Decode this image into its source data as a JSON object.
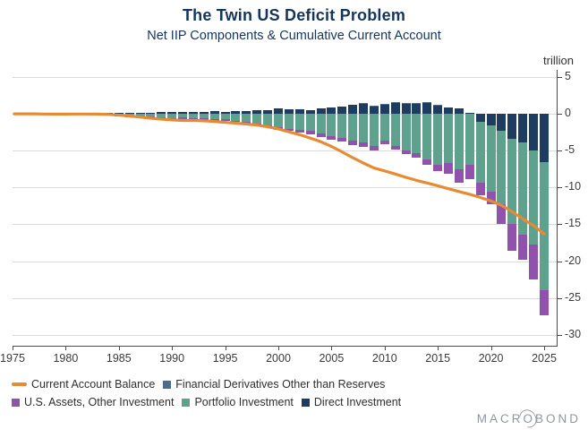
{
  "title": "The Twin US Deficit Problem",
  "subtitle": "Net IIP Components & Cumulative Current Account",
  "unit_label": "trillion",
  "watermark": {
    "part1": "MACR",
    "o": "O",
    "part2": "BOND"
  },
  "colors": {
    "direct_investment": "#1d3c5f",
    "portfolio_investment": "#5ea28d",
    "us_assets_other_investment": "#9152ad",
    "financial_derivatives": "#4d6a93",
    "current_account_line": "#e68b33",
    "title_text": "#14355c",
    "axis_text": "#3a3a3a",
    "gridline": "#dbdbdb",
    "logo_gray": "#8f979e"
  },
  "legend": {
    "rows": [
      [
        {
          "label": "Current Account Balance",
          "marker": "line",
          "color": "#e68b33"
        },
        {
          "label": "Financial Derivatives Other than Reserves",
          "marker": "square",
          "color": "#4d6a93"
        }
      ],
      [
        {
          "label": "U.S. Assets, Other Investment",
          "marker": "square",
          "color": "#9152ad"
        },
        {
          "label": "Portfolio Investment",
          "marker": "square",
          "color": "#5ea28d"
        },
        {
          "label": "Direct Investment",
          "marker": "square",
          "color": "#1d3c5f"
        }
      ]
    ]
  },
  "chart_data": {
    "type": "bar",
    "subtype": "stacked-bars-with-line",
    "unit": "trillion USD",
    "x": [
      1975,
      1976,
      1977,
      1978,
      1979,
      1980,
      1981,
      1982,
      1983,
      1984,
      1985,
      1986,
      1987,
      1988,
      1989,
      1990,
      1991,
      1992,
      1993,
      1994,
      1995,
      1996,
      1997,
      1998,
      1999,
      2000,
      2001,
      2002,
      2003,
      2004,
      2005,
      2006,
      2007,
      2008,
      2009,
      2010,
      2011,
      2012,
      2013,
      2014,
      2015,
      2016,
      2017,
      2018,
      2019,
      2020,
      2021,
      2022,
      2023,
      2024
    ],
    "x_ticks": [
      1975,
      1980,
      1985,
      1990,
      1995,
      2000,
      2005,
      2010,
      2015,
      2020,
      2025
    ],
    "y_ticks": [
      5,
      0,
      -5,
      -10,
      -15,
      -20,
      -25,
      -30
    ],
    "ylim": [
      -31.5,
      6
    ],
    "grid": true,
    "legend_position": "bottom-left",
    "series": [
      {
        "name": "Direct Investment",
        "type": "bar",
        "color": "#1d3c5f",
        "values": [
          0.08,
          0.09,
          0.1,
          0.12,
          0.15,
          0.17,
          0.18,
          0.18,
          0.18,
          0.17,
          0.17,
          0.19,
          0.21,
          0.23,
          0.24,
          0.25,
          0.28,
          0.3,
          0.34,
          0.28,
          0.38,
          0.42,
          0.48,
          0.55,
          0.75,
          0.7,
          0.68,
          0.56,
          0.73,
          0.9,
          1.0,
          1.2,
          1.4,
          1.0,
          1.3,
          1.5,
          1.4,
          1.45,
          1.55,
          1.2,
          0.9,
          0.8,
          0.2,
          -1.1,
          -1.5,
          -2.3,
          -3.4,
          -3.9,
          -5.0,
          -6.5
        ]
      },
      {
        "name": "Portfolio Investment",
        "type": "bar",
        "color": "#5ea28d",
        "values": [
          -0.03,
          -0.04,
          -0.05,
          -0.06,
          -0.07,
          -0.08,
          -0.09,
          -0.12,
          -0.16,
          -0.22,
          -0.28,
          -0.33,
          -0.36,
          -0.45,
          -0.55,
          -0.5,
          -0.55,
          -0.62,
          -0.72,
          -0.75,
          -0.92,
          -1.1,
          -1.3,
          -1.6,
          -1.85,
          -2.0,
          -2.2,
          -2.3,
          -2.7,
          -3.0,
          -3.2,
          -3.6,
          -3.9,
          -4.4,
          -3.6,
          -4.3,
          -4.9,
          -5.3,
          -6.2,
          -6.9,
          -6.7,
          -7.5,
          -6.9,
          -8.2,
          -9.0,
          -10.0,
          -11.6,
          -12.5,
          -12.8,
          -17.4
        ]
      },
      {
        "name": "U.S. Assets, Other Investment",
        "type": "bar",
        "color": "#9152ad",
        "values": [
          0,
          0,
          0,
          0,
          0,
          0,
          0,
          -0.02,
          -0.04,
          -0.06,
          -0.08,
          -0.1,
          -0.12,
          -0.14,
          -0.15,
          -0.16,
          -0.16,
          -0.17,
          -0.17,
          -0.18,
          -0.18,
          -0.19,
          -0.21,
          -0.24,
          -0.27,
          -0.3,
          -0.35,
          -0.45,
          -0.4,
          -0.5,
          -0.55,
          -0.6,
          -0.55,
          -0.6,
          -0.45,
          -0.5,
          -0.6,
          -0.65,
          -0.7,
          -0.8,
          -1.4,
          -1.9,
          -1.9,
          -1.8,
          -1.8,
          -2.6,
          -3.6,
          -3.4,
          -4.7,
          -3.4
        ]
      },
      {
        "name": "Financial Derivatives Other than Reserves",
        "type": "bar",
        "color": "#4d6a93",
        "values": [
          0,
          0,
          0,
          0,
          0,
          0,
          0,
          0,
          0,
          0,
          0,
          0,
          0,
          0,
          0,
          0,
          0,
          0,
          0,
          0,
          0,
          0,
          0,
          0,
          0,
          0,
          0,
          0,
          0,
          0.02,
          0.03,
          0.03,
          0.06,
          0.08,
          0.06,
          0.07,
          0.09,
          0.06,
          0.05,
          0.05,
          0.04,
          0.04,
          0.03,
          0.02,
          0.02,
          0.03,
          0.02,
          0.02,
          0.02,
          0.02
        ]
      },
      {
        "name": "Current Account Balance",
        "type": "line",
        "color": "#e68b33",
        "values": [
          0.02,
          0.02,
          0.0,
          -0.01,
          -0.01,
          0.0,
          0.0,
          -0.01,
          -0.05,
          -0.15,
          -0.27,
          -0.42,
          -0.58,
          -0.7,
          -0.8,
          -0.88,
          -0.88,
          -0.93,
          -1.01,
          -1.13,
          -1.25,
          -1.37,
          -1.51,
          -1.73,
          -2.02,
          -2.42,
          -2.81,
          -3.26,
          -3.78,
          -4.41,
          -5.15,
          -5.95,
          -6.66,
          -7.35,
          -7.73,
          -8.16,
          -8.61,
          -9.03,
          -9.38,
          -9.75,
          -10.16,
          -10.55,
          -10.91,
          -11.35,
          -11.83,
          -12.43,
          -13.29,
          -14.26,
          -15.16,
          -16.3
        ]
      }
    ]
  }
}
